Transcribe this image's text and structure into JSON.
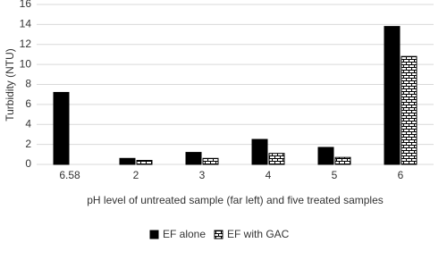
{
  "chart_data": {
    "type": "bar",
    "y_label": "Turbidity (NTU)",
    "x_label": "pH level of untreated sample (far left) and five treated samples",
    "categories": [
      "6.58",
      "2",
      "3",
      "4",
      "5",
      "6"
    ],
    "series": [
      {
        "name": "EF alone",
        "color": "#000000",
        "values": [
          7.2,
          0.6,
          1.2,
          2.5,
          1.7,
          13.8
        ]
      },
      {
        "name": "EF with GAC",
        "color": "#000000",
        "values": [
          null,
          0.4,
          0.6,
          1.1,
          0.7,
          10.8
        ]
      }
    ],
    "ylim": [
      0,
      16
    ],
    "yticks": [
      0,
      2,
      4,
      6,
      8,
      10,
      12,
      14,
      16
    ],
    "grid": true,
    "legend": "bottom"
  }
}
